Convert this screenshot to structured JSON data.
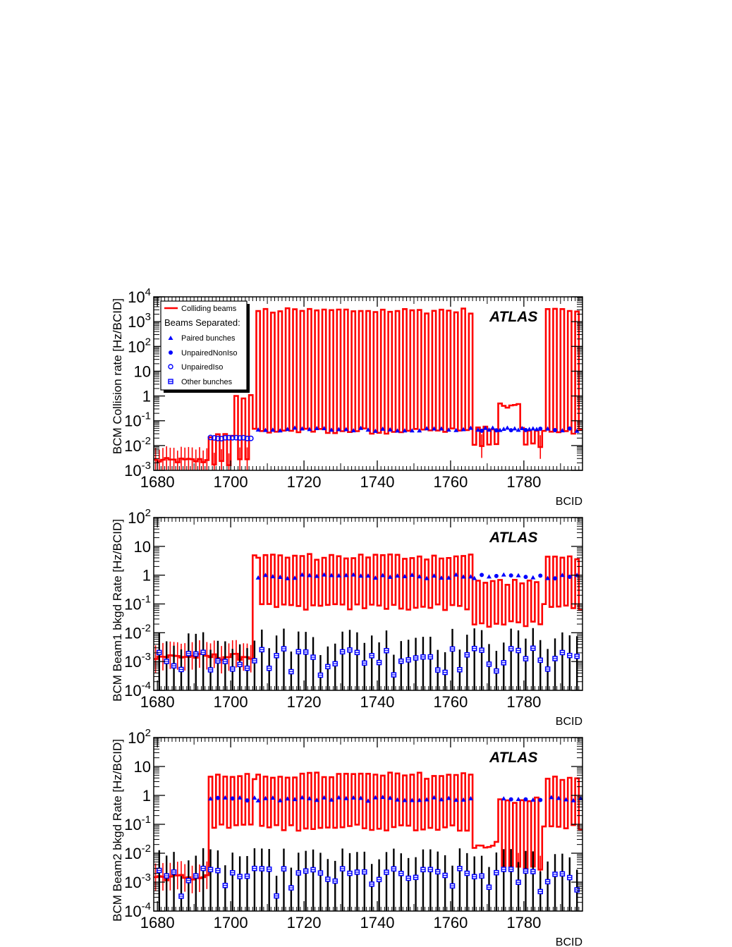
{
  "colors": {
    "red": "#ff0000",
    "blue": "#0000ff",
    "black": "#000000"
  },
  "legend": {
    "colliding": "Colliding beams",
    "separated": "Beams Separated:",
    "paired": "Paired bunches",
    "unpaired_noniso": "UnpairedNonIso",
    "unpaired_iso": "UnpairedIso",
    "other": "Other bunches"
  },
  "chart_data": [
    {
      "type": "line",
      "panel": "collision",
      "atlas_label": "ATLAS",
      "xlabel": "BCID",
      "ylabel": "BCM Collision rate [Hz/BCID]",
      "xlim": [
        1679,
        1796
      ],
      "ylim": [
        0.001,
        10000
      ],
      "log_y": true,
      "x_ticks": [
        "1680",
        "1700",
        "1720",
        "1740",
        "1760",
        "1780"
      ],
      "y_ticks": [
        {
          "b": "10",
          "e": "-3"
        },
        {
          "b": "10",
          "e": "-2"
        },
        {
          "b": "10",
          "e": "-1"
        },
        {
          "b": "1",
          "e": ""
        },
        {
          "b": "10",
          "e": ""
        },
        {
          "b": "10",
          "e": "2"
        },
        {
          "b": "10",
          "e": "3"
        },
        {
          "b": "10",
          "e": "4"
        }
      ],
      "legend": "top-left",
      "colliding_bunch_peak": 2800,
      "colliding_bunch_low": 0.04,
      "beams_separated_level": 0.045
    },
    {
      "type": "line",
      "panel": "beam1",
      "atlas_label": "ATLAS",
      "xlabel": "BCID",
      "ylabel": "BCM Beam1 bkgd Rate [Hz/BCID]",
      "xlim": [
        1679,
        1796
      ],
      "ylim": [
        0.0001,
        100
      ],
      "log_y": true,
      "x_ticks": [
        "1680",
        "1700",
        "1720",
        "1740",
        "1760",
        "1780"
      ],
      "y_ticks": [
        {
          "b": "10",
          "e": "-4"
        },
        {
          "b": "10",
          "e": "-3"
        },
        {
          "b": "10",
          "e": "-2"
        },
        {
          "b": "10",
          "e": "-1"
        },
        {
          "b": "1",
          "e": ""
        },
        {
          "b": "10",
          "e": ""
        },
        {
          "b": "10",
          "e": "2"
        }
      ],
      "colliding_bunch_peak": 4.5,
      "colliding_bunch_low": 0.08,
      "beams_separated_level": 0.9,
      "other_bunches_level": 0.001
    },
    {
      "type": "line",
      "panel": "beam2",
      "atlas_label": "ATLAS",
      "xlabel": "BCID",
      "ylabel": "BCM Beam2 bkgd Rate [Hz/BCID]",
      "xlim": [
        1679,
        1796
      ],
      "ylim": [
        0.0001,
        100
      ],
      "log_y": true,
      "x_ticks": [
        "1680",
        "1700",
        "1720",
        "1740",
        "1760",
        "1780"
      ],
      "y_ticks": [
        {
          "b": "10",
          "e": "-4"
        },
        {
          "b": "10",
          "e": "-3"
        },
        {
          "b": "10",
          "e": "-2"
        },
        {
          "b": "10",
          "e": "-1"
        },
        {
          "b": "1",
          "e": ""
        },
        {
          "b": "10",
          "e": ""
        },
        {
          "b": "10",
          "e": "2"
        }
      ],
      "colliding_bunch_peak": 5,
      "colliding_bunch_low": 0.08,
      "beams_separated_level": 0.75,
      "other_bunches_level": 0.001
    }
  ]
}
